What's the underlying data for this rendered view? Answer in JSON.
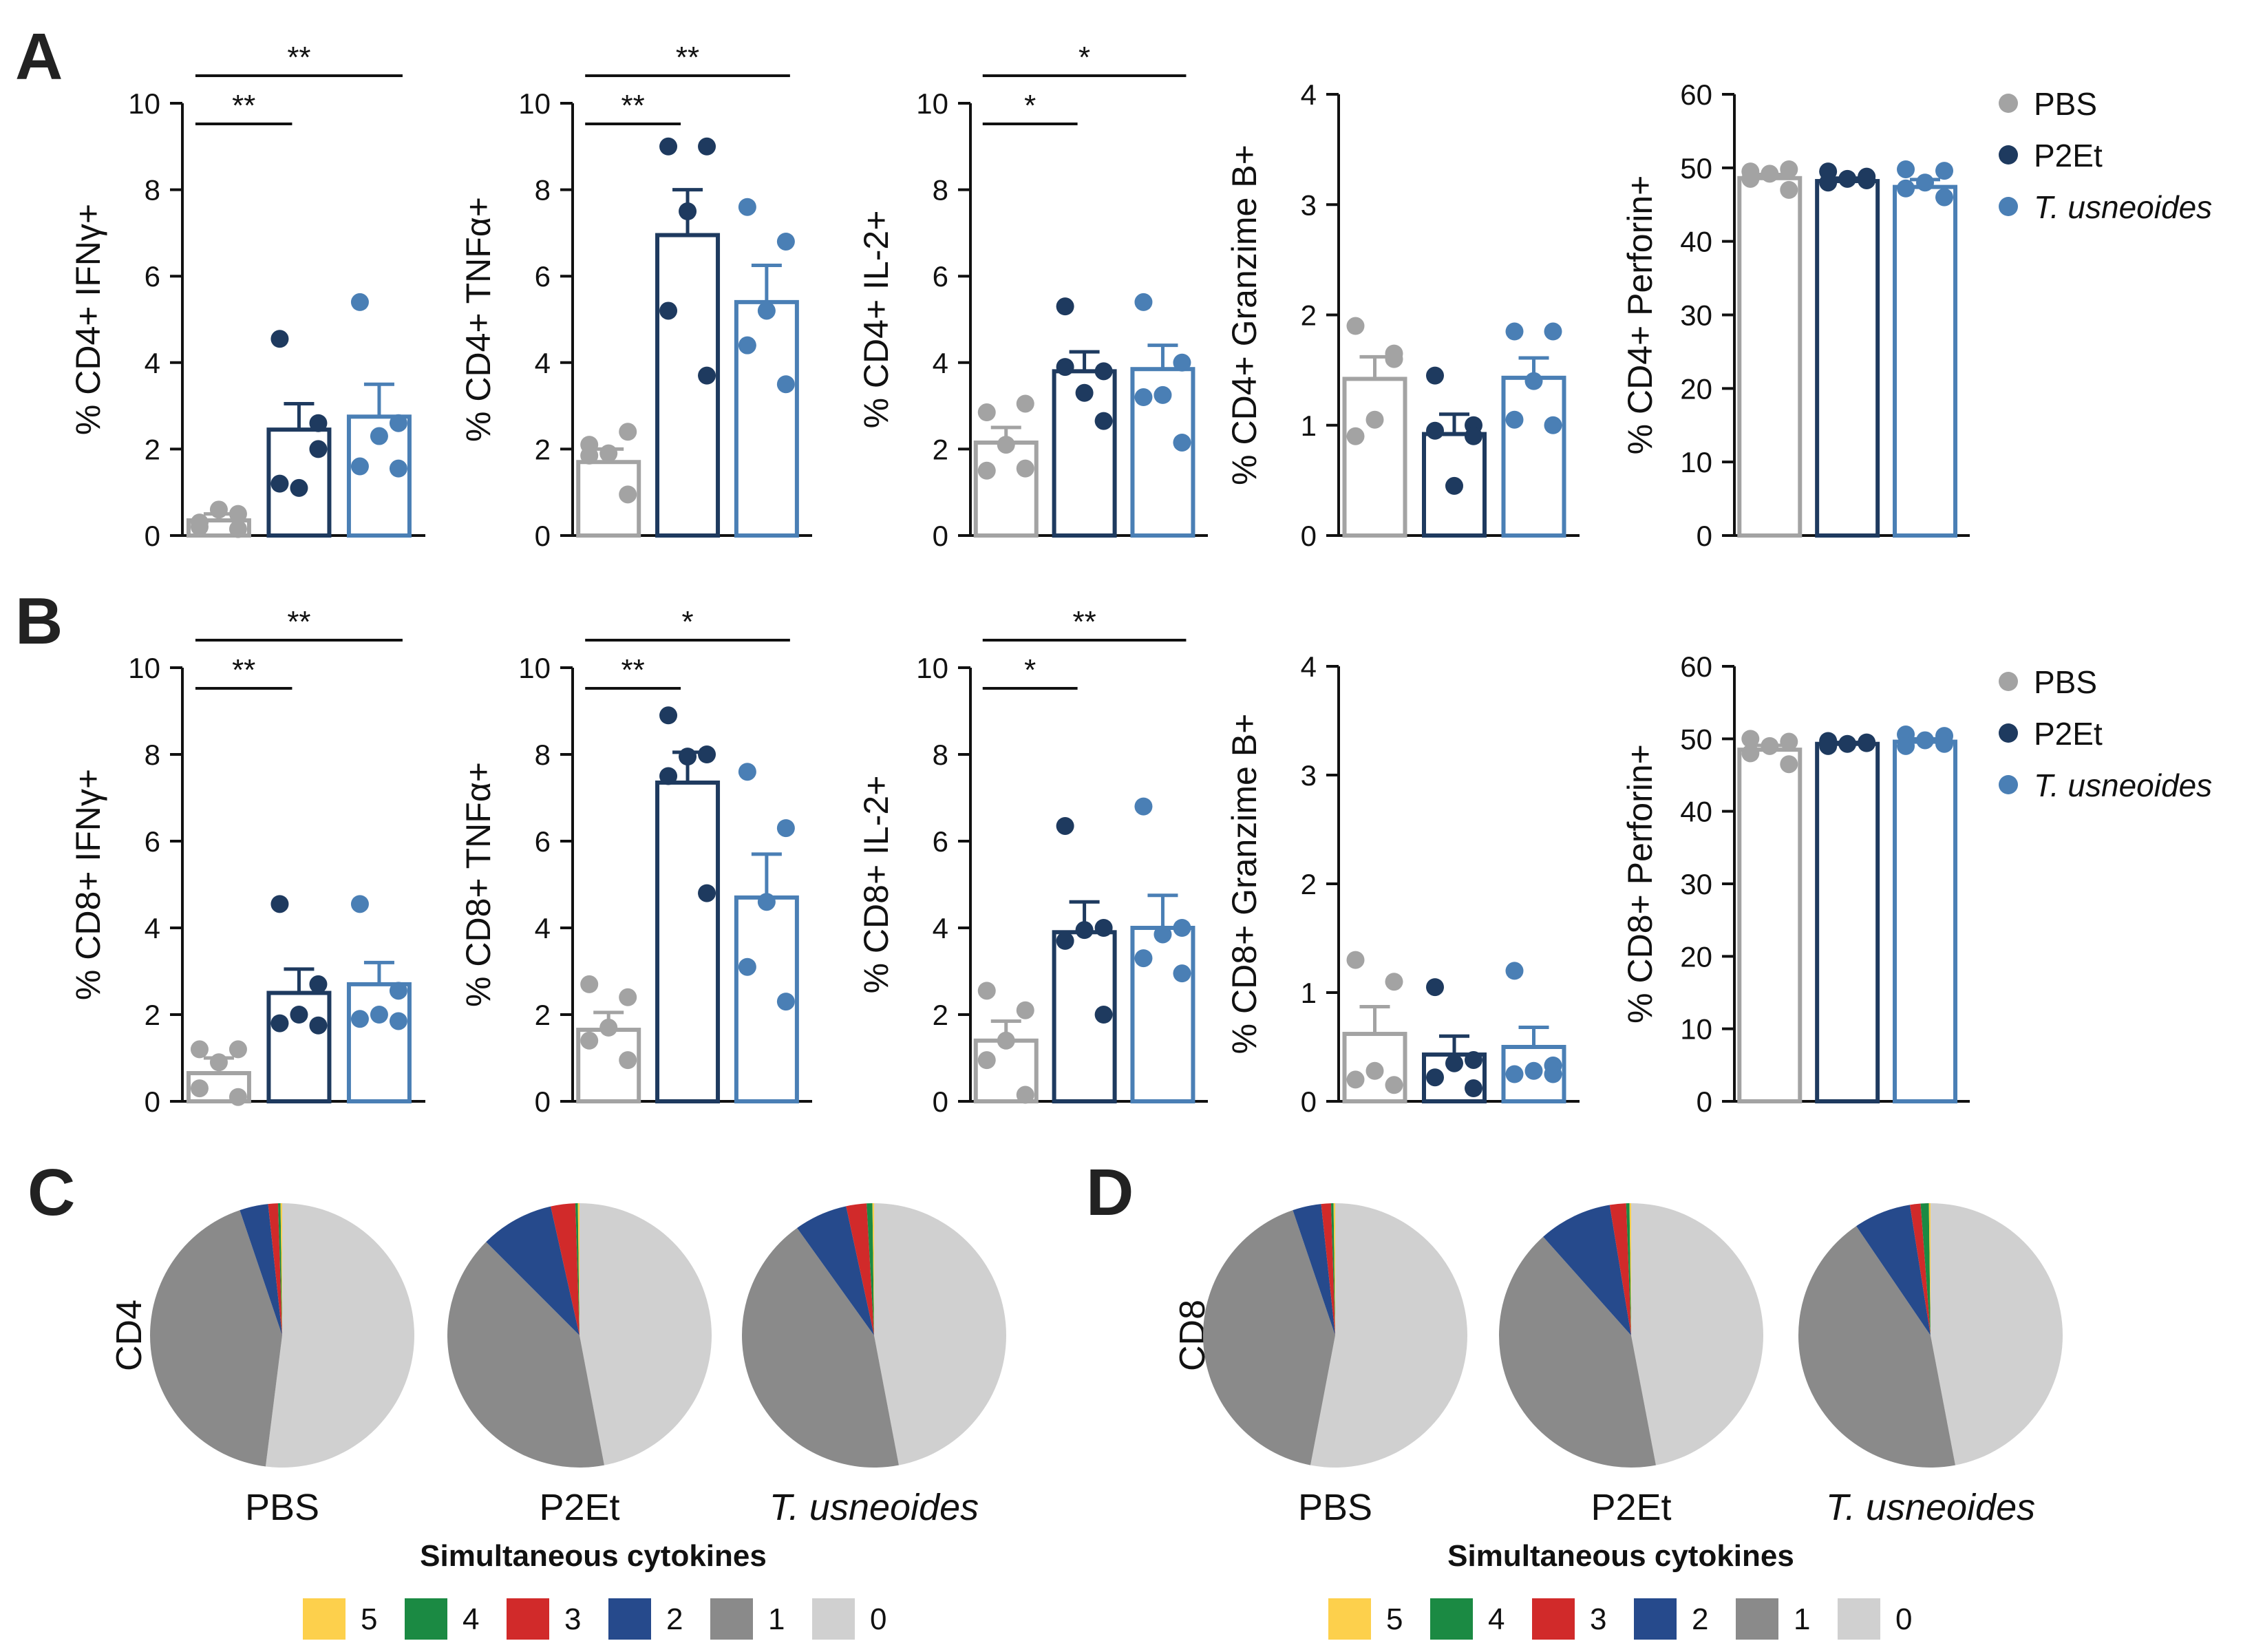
{
  "panel_labels": [
    "A",
    "B",
    "C",
    "D"
  ],
  "groups": [
    "PBS",
    "P2Et",
    "T. usneoides"
  ],
  "colors": {
    "PBS": "#a3a3a3",
    "P2Et": "#1e3a5f",
    "T. usneoides": "#4a7fb5",
    "pie_5": "#fdd04c",
    "pie_4": "#1b8a43",
    "pie_3": "#d12a2a",
    "pie_2": "#264a8c",
    "pie_1": "#8a8a8a",
    "pie_0": "#d0d0d0"
  },
  "legend": [
    {
      "label": "PBS",
      "italic": false
    },
    {
      "label": "P2Et",
      "italic": false
    },
    {
      "label": "T. usneoides",
      "italic": true
    }
  ],
  "chart_data": [
    {
      "id": "a1",
      "panel": "A",
      "type": "bar",
      "ylabel": "% CD4+ IFNγ+",
      "ylim": [
        0,
        10
      ],
      "yticks": [
        0,
        2,
        4,
        6,
        8,
        10
      ],
      "categories": [
        "PBS",
        "P2Et",
        "T. usneoides"
      ],
      "values": [
        0.35,
        2.45,
        2.75
      ],
      "sem": [
        0.15,
        0.6,
        0.75
      ],
      "points": [
        [
          0.3,
          0.5,
          0.6,
          0.2,
          0.15
        ],
        [
          4.55,
          2.6,
          1.1,
          1.2,
          2.0
        ],
        [
          5.4,
          2.6,
          2.3,
          1.6,
          1.55
        ]
      ],
      "sig": [
        {
          "from": 0,
          "to": 1,
          "label": "**"
        },
        {
          "from": 0,
          "to": 2,
          "label": "**"
        }
      ]
    },
    {
      "id": "a2",
      "panel": "A",
      "type": "bar",
      "ylabel": "% CD4+ TNFα+",
      "ylim": [
        0,
        10
      ],
      "yticks": [
        0,
        2,
        4,
        6,
        8,
        10
      ],
      "categories": [
        "PBS",
        "P2Et",
        "T. usneoides"
      ],
      "values": [
        1.7,
        6.95,
        5.4
      ],
      "sem": [
        0.3,
        1.05,
        0.85
      ],
      "points": [
        [
          2.1,
          2.4,
          1.9,
          1.85,
          0.95
        ],
        [
          9.0,
          9.0,
          7.5,
          5.2,
          3.7
        ],
        [
          7.6,
          6.8,
          5.2,
          4.4,
          3.5
        ]
      ],
      "sig": [
        {
          "from": 0,
          "to": 1,
          "label": "**"
        },
        {
          "from": 0,
          "to": 2,
          "label": "**"
        }
      ]
    },
    {
      "id": "a3",
      "panel": "A",
      "type": "bar",
      "ylabel": "% CD4+ IL-2+",
      "ylim": [
        0,
        10
      ],
      "yticks": [
        0,
        2,
        4,
        6,
        8,
        10
      ],
      "categories": [
        "PBS",
        "P2Et",
        "T. usneoides"
      ],
      "values": [
        2.15,
        3.8,
        3.85
      ],
      "sem": [
        0.35,
        0.45,
        0.55
      ],
      "points": [
        [
          2.85,
          3.05,
          2.1,
          1.5,
          1.55
        ],
        [
          5.3,
          3.8,
          3.3,
          3.9,
          2.65
        ],
        [
          5.4,
          4.0,
          3.25,
          3.2,
          2.15
        ]
      ],
      "sig": [
        {
          "from": 0,
          "to": 1,
          "label": "*"
        },
        {
          "from": 0,
          "to": 2,
          "label": "*"
        }
      ]
    },
    {
      "id": "a4",
      "panel": "A",
      "type": "bar",
      "ylabel": "% CD4+ Granzime B+",
      "ylim": [
        0,
        4
      ],
      "yticks": [
        0,
        1,
        2,
        3,
        4
      ],
      "categories": [
        "PBS",
        "P2Et",
        "T. usneoides"
      ],
      "values": [
        1.42,
        0.92,
        1.43
      ],
      "sem": [
        0.2,
        0.18,
        0.18
      ],
      "points": [
        [
          1.9,
          1.6,
          1.05,
          0.9,
          1.65
        ],
        [
          1.45,
          1.0,
          0.45,
          0.95,
          0.9
        ],
        [
          1.85,
          1.85,
          1.4,
          1.05,
          1.0
        ]
      ],
      "sig": []
    },
    {
      "id": "a5",
      "panel": "A",
      "type": "bar",
      "ylabel": "% CD4+ Perforin+",
      "ylim": [
        0,
        60
      ],
      "yticks": [
        0,
        10,
        20,
        30,
        40,
        50,
        60
      ],
      "categories": [
        "PBS",
        "P2Et",
        "T. usneoides"
      ],
      "values": [
        48.6,
        48.2,
        47.4
      ],
      "sem": [
        0.5,
        0.4,
        1.0
      ],
      "points": [
        [
          49.5,
          49.8,
          49.2,
          48.5,
          47.0
        ],
        [
          49.5,
          48.8,
          48.5,
          48.0,
          48.3
        ],
        [
          49.8,
          49.6,
          48.0,
          47.2,
          46.0
        ]
      ],
      "sig": []
    },
    {
      "id": "b1",
      "panel": "B",
      "type": "bar",
      "ylabel": "% CD8+ IFNγ+",
      "ylim": [
        0,
        10
      ],
      "yticks": [
        0,
        2,
        4,
        6,
        8,
        10
      ],
      "categories": [
        "PBS",
        "P2Et",
        "T. usneoides"
      ],
      "values": [
        0.65,
        2.5,
        2.7
      ],
      "sem": [
        0.35,
        0.55,
        0.5
      ],
      "points": [
        [
          1.2,
          1.2,
          0.9,
          0.3,
          0.1
        ],
        [
          4.55,
          2.7,
          2.0,
          1.8,
          1.75
        ],
        [
          4.55,
          2.55,
          2.0,
          1.9,
          1.85
        ]
      ],
      "sig": [
        {
          "from": 0,
          "to": 1,
          "label": "**"
        },
        {
          "from": 0,
          "to": 2,
          "label": "**"
        }
      ]
    },
    {
      "id": "b2",
      "panel": "B",
      "type": "bar",
      "ylabel": "% CD8+ TNFα+",
      "ylim": [
        0,
        10
      ],
      "yticks": [
        0,
        2,
        4,
        6,
        8,
        10
      ],
      "categories": [
        "PBS",
        "P2Et",
        "T. usneoides"
      ],
      "values": [
        1.65,
        7.35,
        4.7
      ],
      "sem": [
        0.4,
        0.7,
        1.0
      ],
      "points": [
        [
          2.7,
          2.4,
          1.7,
          1.4,
          0.95
        ],
        [
          8.9,
          8.0,
          7.95,
          7.5,
          4.8
        ],
        [
          7.6,
          6.3,
          4.6,
          3.1,
          2.3
        ]
      ],
      "sig": [
        {
          "from": 0,
          "to": 1,
          "label": "**"
        },
        {
          "from": 0,
          "to": 2,
          "label": "*"
        }
      ]
    },
    {
      "id": "b3",
      "panel": "B",
      "type": "bar",
      "ylabel": "% CD8+ IL-2+",
      "ylim": [
        0,
        10
      ],
      "yticks": [
        0,
        2,
        4,
        6,
        8,
        10
      ],
      "categories": [
        "PBS",
        "P2Et",
        "T. usneoides"
      ],
      "values": [
        1.4,
        3.9,
        4.0
      ],
      "sem": [
        0.45,
        0.7,
        0.75
      ],
      "points": [
        [
          2.55,
          2.1,
          1.4,
          0.95,
          0.15
        ],
        [
          6.35,
          4.0,
          3.95,
          3.7,
          2.0
        ],
        [
          6.8,
          4.0,
          3.85,
          3.3,
          2.95
        ]
      ],
      "sig": [
        {
          "from": 0,
          "to": 1,
          "label": "*"
        },
        {
          "from": 0,
          "to": 2,
          "label": "**"
        }
      ]
    },
    {
      "id": "b4",
      "panel": "B",
      "type": "bar",
      "ylabel": "% CD8+ Granzime B+",
      "ylim": [
        0,
        4
      ],
      "yticks": [
        0,
        1,
        2,
        3,
        4
      ],
      "categories": [
        "PBS",
        "P2Et",
        "T. usneoides"
      ],
      "values": [
        0.62,
        0.43,
        0.5
      ],
      "sem": [
        0.25,
        0.17,
        0.18
      ],
      "points": [
        [
          1.3,
          1.1,
          0.28,
          0.2,
          0.15
        ],
        [
          1.05,
          0.38,
          0.35,
          0.22,
          0.12
        ],
        [
          1.2,
          0.33,
          0.28,
          0.25,
          0.25
        ]
      ],
      "sig": []
    },
    {
      "id": "b5",
      "panel": "B",
      "type": "bar",
      "ylabel": "% CD8+ Perforin+",
      "ylim": [
        0,
        60
      ],
      "yticks": [
        0,
        10,
        20,
        30,
        40,
        50,
        60
      ],
      "categories": [
        "PBS",
        "P2Et",
        "T. usneoides"
      ],
      "values": [
        48.5,
        49.3,
        49.6
      ],
      "sem": [
        0.6,
        0.2,
        0.4
      ],
      "points": [
        [
          50.0,
          49.6,
          49.0,
          48.0,
          46.5
        ],
        [
          49.7,
          49.5,
          49.3,
          49.0,
          49.4
        ],
        [
          50.6,
          50.4,
          49.8,
          49.0,
          49.3
        ]
      ],
      "sig": []
    },
    {
      "id": "c",
      "panel": "C",
      "type": "pie",
      "row_label": "CD4",
      "legend_title": "Simultaneous cytokines",
      "legend_labels": [
        "5",
        "4",
        "3",
        "2",
        "1",
        "0"
      ],
      "pies": [
        {
          "label": "PBS",
          "italic": false,
          "slices": [
            0.002,
            0.003,
            0.012,
            0.035,
            0.428,
            0.52
          ]
        },
        {
          "label": "P2Et",
          "italic": false,
          "slices": [
            0.002,
            0.003,
            0.03,
            0.09,
            0.405,
            0.47
          ]
        },
        {
          "label": "T. usneoides",
          "italic": true,
          "slices": [
            0.002,
            0.007,
            0.025,
            0.065,
            0.431,
            0.47
          ]
        }
      ]
    },
    {
      "id": "d",
      "panel": "D",
      "type": "pie",
      "row_label": "CD8",
      "legend_title": "Simultaneous cytokines",
      "legend_labels": [
        "5",
        "4",
        "3",
        "2",
        "1",
        "0"
      ],
      "pies": [
        {
          "label": "PBS",
          "italic": false,
          "slices": [
            0.002,
            0.003,
            0.012,
            0.035,
            0.418,
            0.53
          ]
        },
        {
          "label": "P2Et",
          "italic": false,
          "slices": [
            0.002,
            0.004,
            0.02,
            0.09,
            0.414,
            0.47
          ]
        },
        {
          "label": "T. usneoides",
          "italic": true,
          "slices": [
            0.002,
            0.01,
            0.013,
            0.07,
            0.435,
            0.47
          ]
        }
      ]
    }
  ]
}
